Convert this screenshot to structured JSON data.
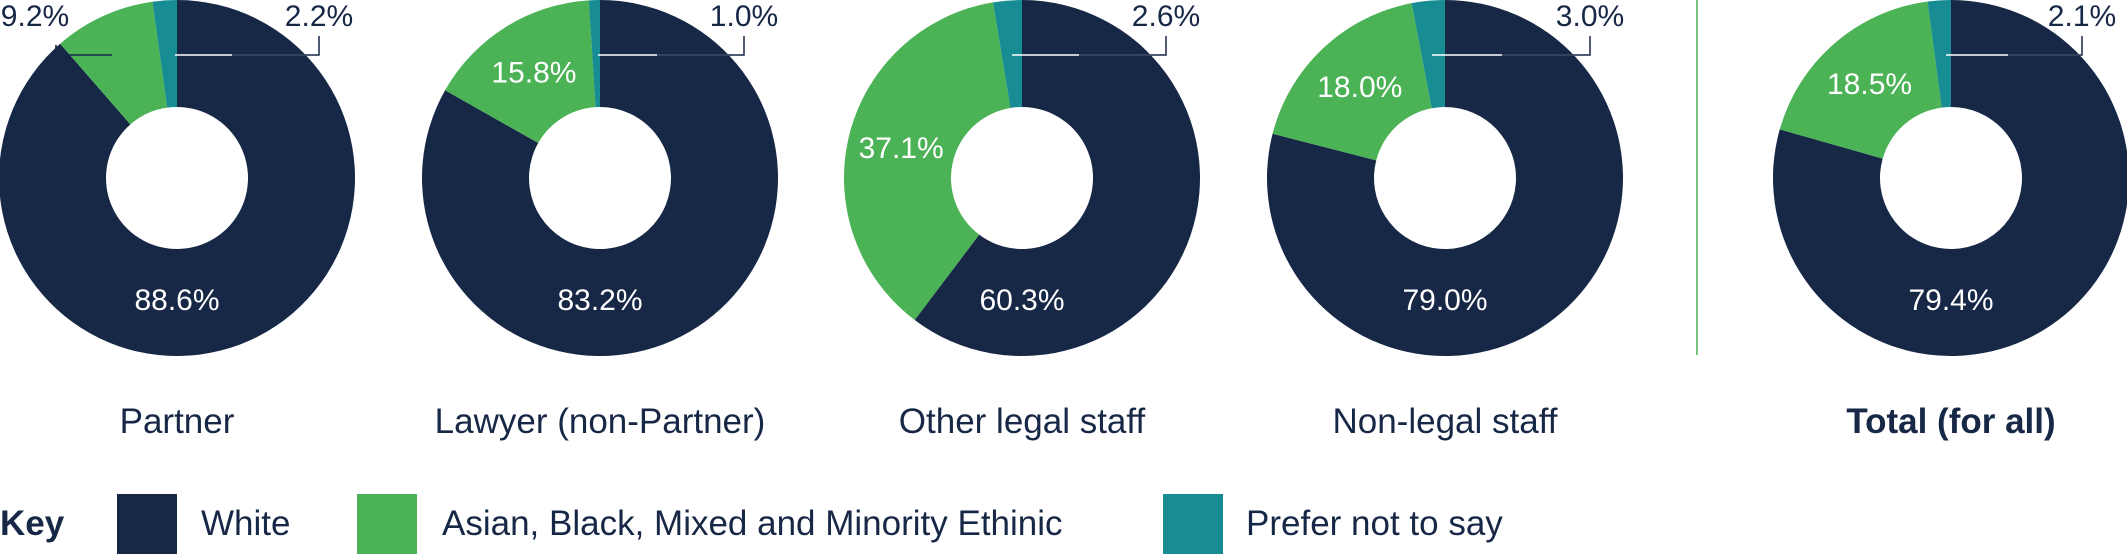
{
  "chart_data": {
    "type": "pie",
    "variant": "donut",
    "series_names": [
      "White",
      "Asian, Black, Mixed and Minority Ethinic",
      "Prefer not to say"
    ],
    "colors": [
      "#172746",
      "#4bb255",
      "#178c92"
    ],
    "charts": [
      {
        "category": "Partner",
        "values": [
          88.6,
          9.2,
          2.2
        ],
        "labels": [
          "88.6%",
          "9.2%",
          "2.2%"
        ],
        "bold": false
      },
      {
        "category": "Lawyer (non-Partner)",
        "values": [
          83.2,
          15.8,
          1.0
        ],
        "labels": [
          "83.2%",
          "15.8%",
          "1.0%"
        ],
        "bold": false
      },
      {
        "category": "Other legal staff",
        "values": [
          60.3,
          37.1,
          2.6
        ],
        "labels": [
          "60.3%",
          "37.1%",
          "2.6%"
        ],
        "bold": false
      },
      {
        "category": "Non-legal staff",
        "values": [
          79.0,
          18.0,
          3.0
        ],
        "labels": [
          "79.0%",
          "18.0%",
          "3.0%"
        ],
        "bold": false
      },
      {
        "category": "Total (for all)",
        "values": [
          79.4,
          18.5,
          2.1
        ],
        "labels": [
          "79.4%",
          "18.5%",
          "2.1%"
        ],
        "bold": true
      }
    ],
    "legend": {
      "title": "Key",
      "items": [
        "White",
        "Asian, Black, Mixed and Minority Ethinic",
        "Prefer not to say"
      ],
      "position": "bottom"
    }
  }
}
